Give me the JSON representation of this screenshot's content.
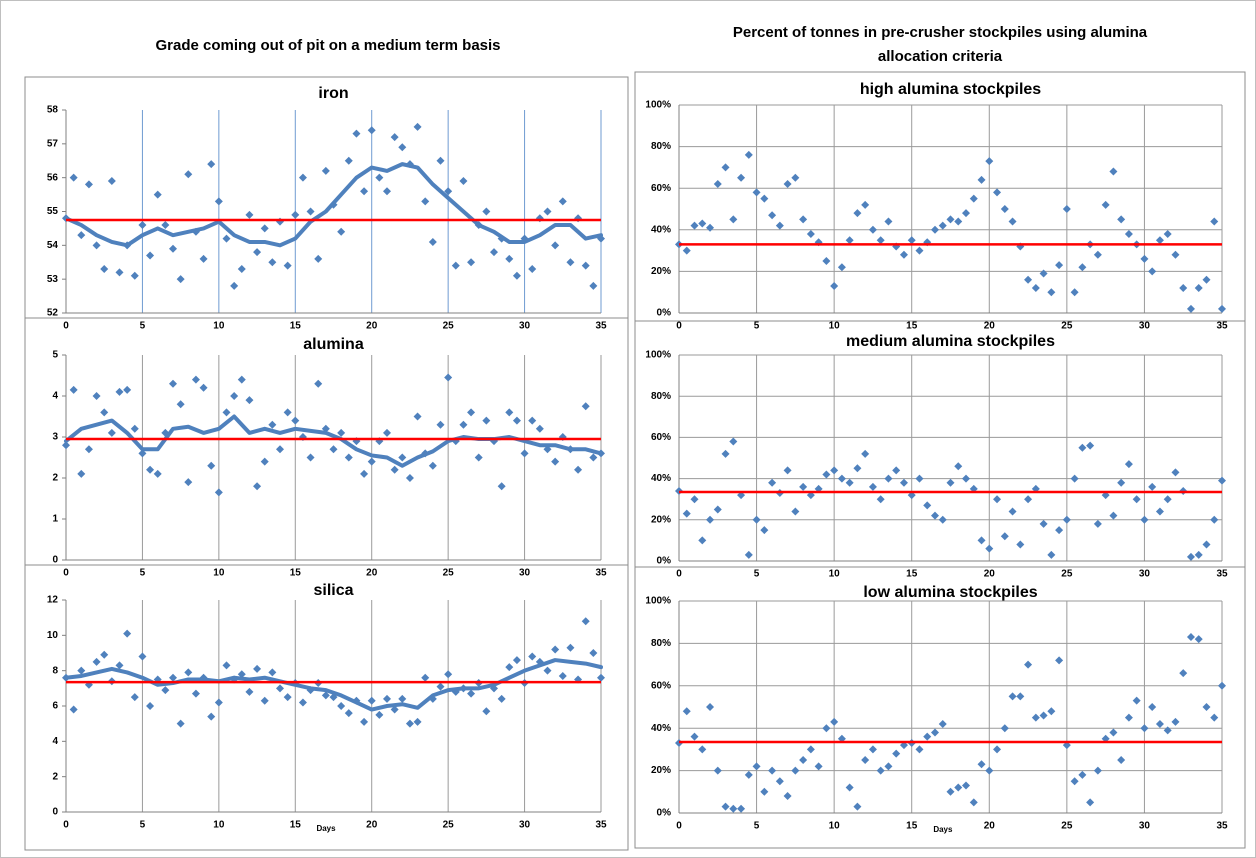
{
  "page": {
    "left_heading": "Grade coming out of pit on a medium term basis",
    "right_heading_line1": "Percent of tonnes in pre-crusher stockpiles using alumina",
    "right_heading_line2": "allocation criteria"
  },
  "chart_data": [
    {
      "type": "scatter",
      "title": "iron",
      "color": "#4f81bd",
      "grid_color": "#6f9bd1",
      "xgrid": true,
      "ygrid": false,
      "reference_line": 54.75,
      "reference_color": "#ff0000",
      "xlim": [
        0,
        35
      ],
      "xticks": [
        0,
        5,
        10,
        15,
        20,
        25,
        30,
        35
      ],
      "ylim": [
        52,
        58
      ],
      "yticks": [
        52,
        53,
        54,
        55,
        56,
        57,
        58
      ],
      "x": [
        0,
        0.5,
        1,
        1.5,
        2,
        2.5,
        3,
        3.5,
        4,
        4.5,
        5,
        5.5,
        6,
        6.5,
        7,
        7.5,
        8,
        8.5,
        9,
        9.5,
        10,
        10.5,
        11,
        11.5,
        12,
        12.5,
        13,
        13.5,
        14,
        14.5,
        15,
        15.5,
        16,
        16.5,
        17,
        17.5,
        18,
        18.5,
        19,
        19.5,
        20,
        20.5,
        21,
        21.5,
        22,
        22.5,
        23,
        23.5,
        24,
        24.5,
        25,
        25.5,
        26,
        26.5,
        27,
        27.5,
        28,
        28.5,
        29,
        29.5,
        30,
        30.5,
        31,
        31.5,
        32,
        32.5,
        33,
        33.5,
        34,
        34.5,
        35
      ],
      "values": [
        54.8,
        56.0,
        54.3,
        55.8,
        54.0,
        53.3,
        55.9,
        53.2,
        54.0,
        53.1,
        54.6,
        53.7,
        55.5,
        54.6,
        53.9,
        53.0,
        56.1,
        54.4,
        53.6,
        56.4,
        55.3,
        54.2,
        52.8,
        53.3,
        54.9,
        53.8,
        54.5,
        53.5,
        54.7,
        53.4,
        54.9,
        56.0,
        55.0,
        53.6,
        56.2,
        55.2,
        54.4,
        56.5,
        57.3,
        55.6,
        57.4,
        56.0,
        55.6,
        57.2,
        56.9,
        56.4,
        57.5,
        55.3,
        54.1,
        56.5,
        55.6,
        53.4,
        55.9,
        53.5,
        54.6,
        55.0,
        53.8,
        54.2,
        53.6,
        53.1,
        54.2,
        53.3,
        54.8,
        55.0,
        54.0,
        55.3,
        53.5,
        54.8,
        53.4,
        52.8,
        54.2
      ],
      "trend": {
        "x": [
          0,
          1,
          2,
          3,
          4,
          5,
          6,
          7,
          8,
          9,
          10,
          11,
          12,
          13,
          14,
          15,
          16,
          17,
          18,
          19,
          20,
          21,
          22,
          23,
          24,
          25,
          26,
          27,
          28,
          29,
          30,
          31,
          32,
          33,
          34,
          35
        ],
        "values": [
          54.8,
          54.6,
          54.3,
          54.1,
          54.0,
          54.3,
          54.5,
          54.3,
          54.4,
          54.5,
          54.7,
          54.3,
          54.1,
          54.1,
          54.0,
          54.2,
          54.7,
          55.0,
          55.5,
          56.0,
          56.3,
          56.2,
          56.4,
          56.3,
          55.8,
          55.4,
          55.0,
          54.6,
          54.4,
          54.1,
          54.1,
          54.3,
          54.6,
          54.6,
          54.2,
          54.3
        ]
      }
    },
    {
      "type": "scatter",
      "title": "alumina",
      "color": "#4f81bd",
      "grid_color": "#9a9a9a",
      "xgrid": true,
      "ygrid": false,
      "reference_line": 2.95,
      "reference_color": "#ff0000",
      "xlim": [
        0,
        35
      ],
      "xticks": [
        0,
        5,
        10,
        15,
        20,
        25,
        30,
        35
      ],
      "ylim": [
        0,
        5
      ],
      "yticks": [
        0,
        1,
        2,
        3,
        4,
        5
      ],
      "x": [
        0,
        0.5,
        1,
        1.5,
        2,
        2.5,
        3,
        3.5,
        4,
        4.5,
        5,
        5.5,
        6,
        6.5,
        7,
        7.5,
        8,
        8.5,
        9,
        9.5,
        10,
        10.5,
        11,
        11.5,
        12,
        12.5,
        13,
        13.5,
        14,
        14.5,
        15,
        15.5,
        16,
        16.5,
        17,
        17.5,
        18,
        18.5,
        19,
        19.5,
        20,
        20.5,
        21,
        21.5,
        22,
        22.5,
        23,
        23.5,
        24,
        24.5,
        25,
        25.5,
        26,
        26.5,
        27,
        27.5,
        28,
        28.5,
        29,
        29.5,
        30,
        30.5,
        31,
        31.5,
        32,
        32.5,
        33,
        33.5,
        34,
        34.5,
        35
      ],
      "values": [
        2.8,
        4.15,
        2.1,
        2.7,
        4.0,
        3.6,
        3.1,
        4.1,
        4.15,
        3.2,
        2.6,
        2.2,
        2.1,
        3.1,
        4.3,
        3.8,
        1.9,
        4.4,
        4.2,
        2.3,
        1.65,
        3.6,
        4.0,
        4.4,
        3.9,
        1.8,
        2.4,
        3.3,
        2.7,
        3.6,
        3.4,
        3.0,
        2.5,
        4.3,
        3.2,
        2.7,
        3.1,
        2.5,
        2.9,
        2.1,
        2.4,
        2.9,
        3.1,
        2.2,
        2.5,
        2.0,
        3.5,
        2.6,
        2.3,
        3.3,
        4.45,
        2.9,
        3.3,
        3.6,
        2.5,
        3.4,
        2.9,
        1.8,
        3.6,
        3.4,
        2.6,
        3.4,
        3.2,
        2.7,
        2.4,
        3.0,
        2.7,
        2.2,
        3.75,
        2.5,
        2.6
      ],
      "trend": {
        "x": [
          0,
          1,
          2,
          3,
          4,
          5,
          6,
          7,
          8,
          9,
          10,
          11,
          12,
          13,
          14,
          15,
          16,
          17,
          18,
          19,
          20,
          21,
          22,
          23,
          24,
          25,
          26,
          27,
          28,
          29,
          30,
          31,
          32,
          33,
          34,
          35
        ],
        "values": [
          2.9,
          3.2,
          3.3,
          3.4,
          3.1,
          2.7,
          2.7,
          3.2,
          3.25,
          3.1,
          3.2,
          3.5,
          3.1,
          3.2,
          3.1,
          3.2,
          3.15,
          3.1,
          2.95,
          2.7,
          2.55,
          2.5,
          2.3,
          2.5,
          2.65,
          2.9,
          3.0,
          2.95,
          2.95,
          3.0,
          2.9,
          2.8,
          2.8,
          2.7,
          2.7,
          2.6
        ]
      }
    },
    {
      "type": "scatter",
      "title": "silica",
      "color": "#4f81bd",
      "grid_color": "#9a9a9a",
      "xgrid": true,
      "ygrid": false,
      "xlabel": "Days",
      "reference_line": 7.35,
      "reference_color": "#ff0000",
      "xlim": [
        0,
        35
      ],
      "xticks": [
        0,
        5,
        10,
        15,
        20,
        25,
        30,
        35
      ],
      "ylim": [
        0,
        12
      ],
      "yticks": [
        0,
        2,
        4,
        6,
        8,
        10,
        12
      ],
      "x": [
        0,
        0.5,
        1,
        1.5,
        2,
        2.5,
        3,
        3.5,
        4,
        4.5,
        5,
        5.5,
        6,
        6.5,
        7,
        7.5,
        8,
        8.5,
        9,
        9.5,
        10,
        10.5,
        11,
        11.5,
        12,
        12.5,
        13,
        13.5,
        14,
        14.5,
        15,
        15.5,
        16,
        16.5,
        17,
        17.5,
        18,
        18.5,
        19,
        19.5,
        20,
        20.5,
        21,
        21.5,
        22,
        22.5,
        23,
        23.5,
        24,
        24.5,
        25,
        25.5,
        26,
        26.5,
        27,
        27.5,
        28,
        28.5,
        29,
        29.5,
        30,
        30.5,
        31,
        31.5,
        32,
        32.5,
        33,
        33.5,
        34,
        34.5,
        35
      ],
      "values": [
        7.6,
        5.8,
        8.0,
        7.2,
        8.5,
        8.9,
        7.4,
        8.3,
        10.1,
        6.5,
        8.8,
        6.0,
        7.5,
        6.9,
        7.6,
        5.0,
        7.9,
        6.7,
        7.6,
        5.4,
        6.2,
        8.3,
        7.5,
        7.8,
        6.8,
        8.1,
        6.3,
        7.9,
        7.0,
        6.5,
        7.3,
        6.2,
        6.9,
        7.3,
        6.6,
        6.5,
        6.0,
        5.6,
        6.3,
        5.1,
        6.3,
        5.5,
        6.4,
        5.8,
        6.4,
        5.0,
        5.1,
        7.6,
        6.4,
        7.1,
        7.8,
        6.8,
        7.0,
        6.7,
        7.3,
        5.7,
        7.0,
        6.4,
        8.2,
        8.6,
        7.3,
        8.8,
        8.5,
        8.0,
        9.2,
        7.7,
        9.3,
        7.5,
        10.8,
        9.0,
        7.6
      ],
      "trend": {
        "x": [
          0,
          1,
          2,
          3,
          4,
          5,
          6,
          7,
          8,
          9,
          10,
          11,
          12,
          13,
          14,
          15,
          16,
          17,
          18,
          19,
          20,
          21,
          22,
          23,
          24,
          25,
          26,
          27,
          28,
          29,
          30,
          31,
          32,
          33,
          34,
          35
        ],
        "values": [
          7.6,
          7.7,
          7.9,
          8.1,
          7.9,
          7.6,
          7.2,
          7.3,
          7.5,
          7.5,
          7.4,
          7.6,
          7.5,
          7.6,
          7.4,
          7.2,
          7.0,
          6.9,
          6.6,
          6.2,
          5.8,
          6.0,
          6.1,
          5.9,
          6.6,
          6.9,
          7.0,
          7.0,
          7.2,
          7.6,
          8.0,
          8.3,
          8.6,
          8.5,
          8.4,
          8.2
        ]
      }
    },
    {
      "type": "scatter",
      "title": "high alumina stockpiles",
      "color": "#4f81bd",
      "grid_color": "#9a9a9a",
      "xgrid": true,
      "ygrid": true,
      "reference_line": 33,
      "reference_color": "#ff0000",
      "xlim": [
        0,
        35
      ],
      "xticks": [
        0,
        5,
        10,
        15,
        20,
        25,
        30,
        35
      ],
      "ylim": [
        0,
        100
      ],
      "yticks": [
        {
          "value": 0,
          "label": "0%"
        },
        {
          "value": 20,
          "label": "20%"
        },
        {
          "value": 40,
          "label": "40%"
        },
        {
          "value": 60,
          "label": "60%"
        },
        {
          "value": 80,
          "label": "80%"
        },
        {
          "value": 100,
          "label": "100%"
        }
      ],
      "x": [
        0,
        0.5,
        1,
        1.5,
        2,
        2.5,
        3,
        3.5,
        4,
        4.5,
        5,
        5.5,
        6,
        6.5,
        7,
        7.5,
        8,
        8.5,
        9,
        9.5,
        10,
        10.5,
        11,
        11.5,
        12,
        12.5,
        13,
        13.5,
        14,
        14.5,
        15,
        15.5,
        16,
        16.5,
        17,
        17.5,
        18,
        18.5,
        19,
        19.5,
        20,
        20.5,
        21,
        21.5,
        22,
        22.5,
        23,
        23.5,
        24,
        24.5,
        25,
        25.5,
        26,
        26.5,
        27,
        27.5,
        28,
        28.5,
        29,
        29.5,
        30,
        30.5,
        31,
        31.5,
        32,
        32.5,
        33,
        33.5,
        34,
        34.5,
        35
      ],
      "values": [
        33,
        30,
        42,
        43,
        41,
        62,
        70,
        45,
        65,
        76,
        58,
        55,
        47,
        42,
        62,
        65,
        45,
        38,
        34,
        25,
        13,
        22,
        35,
        48,
        52,
        40,
        35,
        44,
        32,
        28,
        35,
        30,
        34,
        40,
        42,
        45,
        44,
        48,
        55,
        64,
        73,
        58,
        50,
        44,
        32,
        16,
        12,
        19,
        10,
        23,
        50,
        10,
        22,
        33,
        28,
        52,
        68,
        45,
        38,
        33,
        26,
        20,
        35,
        38,
        28,
        12,
        2,
        12,
        16,
        44,
        2
      ]
    },
    {
      "type": "scatter",
      "title": "medium alumina stockpiles",
      "color": "#4f81bd",
      "grid_color": "#9a9a9a",
      "xgrid": true,
      "ygrid": true,
      "reference_line": 33.5,
      "reference_color": "#ff0000",
      "xlim": [
        0,
        35
      ],
      "xticks": [
        0,
        5,
        10,
        15,
        20,
        25,
        30,
        35
      ],
      "ylim": [
        0,
        100
      ],
      "yticks": [
        {
          "value": 0,
          "label": "0%"
        },
        {
          "value": 20,
          "label": "20%"
        },
        {
          "value": 40,
          "label": "40%"
        },
        {
          "value": 60,
          "label": "60%"
        },
        {
          "value": 80,
          "label": "80%"
        },
        {
          "value": 100,
          "label": "100%"
        }
      ],
      "x": [
        0,
        0.5,
        1,
        1.5,
        2,
        2.5,
        3,
        3.5,
        4,
        4.5,
        5,
        5.5,
        6,
        6.5,
        7,
        7.5,
        8,
        8.5,
        9,
        9.5,
        10,
        10.5,
        11,
        11.5,
        12,
        12.5,
        13,
        13.5,
        14,
        14.5,
        15,
        15.5,
        16,
        16.5,
        17,
        17.5,
        18,
        18.5,
        19,
        19.5,
        20,
        20.5,
        21,
        21.5,
        22,
        22.5,
        23,
        23.5,
        24,
        24.5,
        25,
        25.5,
        26,
        26.5,
        27,
        27.5,
        28,
        28.5,
        29,
        29.5,
        30,
        30.5,
        31,
        31.5,
        32,
        32.5,
        33,
        33.5,
        34,
        34.5,
        35
      ],
      "values": [
        34,
        23,
        30,
        10,
        20,
        25,
        52,
        58,
        32,
        3,
        20,
        15,
        38,
        33,
        44,
        24,
        36,
        32,
        35,
        42,
        44,
        40,
        38,
        45,
        52,
        36,
        30,
        40,
        44,
        38,
        32,
        40,
        27,
        22,
        20,
        38,
        46,
        40,
        35,
        10,
        6,
        30,
        12,
        24,
        8,
        30,
        35,
        18,
        3,
        15,
        20,
        40,
        55,
        56,
        18,
        32,
        22,
        38,
        47,
        30,
        20,
        36,
        24,
        30,
        43,
        34,
        2,
        3,
        8,
        20,
        39
      ]
    },
    {
      "type": "scatter",
      "title": "low alumina stockpiles",
      "color": "#4f81bd",
      "grid_color": "#9a9a9a",
      "xgrid": true,
      "ygrid": true,
      "xlabel": "Days",
      "reference_line": 33.5,
      "reference_color": "#ff0000",
      "xlim": [
        0,
        35
      ],
      "xticks": [
        0,
        5,
        10,
        15,
        20,
        25,
        30,
        35
      ],
      "ylim": [
        0,
        100
      ],
      "yticks": [
        {
          "value": 0,
          "label": "0%"
        },
        {
          "value": 20,
          "label": "20%"
        },
        {
          "value": 40,
          "label": "40%"
        },
        {
          "value": 60,
          "label": "60%"
        },
        {
          "value": 80,
          "label": "80%"
        },
        {
          "value": 100,
          "label": "100%"
        }
      ],
      "x": [
        0,
        0.5,
        1,
        1.5,
        2,
        2.5,
        3,
        3.5,
        4,
        4.5,
        5,
        5.5,
        6,
        6.5,
        7,
        7.5,
        8,
        8.5,
        9,
        9.5,
        10,
        10.5,
        11,
        11.5,
        12,
        12.5,
        13,
        13.5,
        14,
        14.5,
        15,
        15.5,
        16,
        16.5,
        17,
        17.5,
        18,
        18.5,
        19,
        19.5,
        20,
        20.5,
        21,
        21.5,
        22,
        22.5,
        23,
        23.5,
        24,
        24.5,
        25,
        25.5,
        26,
        26.5,
        27,
        27.5,
        28,
        28.5,
        29,
        29.5,
        30,
        30.5,
        31,
        31.5,
        32,
        32.5,
        33,
        33.5,
        34,
        34.5,
        35
      ],
      "values": [
        33,
        48,
        36,
        30,
        50,
        20,
        3,
        2,
        2,
        18,
        22,
        10,
        20,
        15,
        8,
        20,
        25,
        30,
        22,
        40,
        43,
        35,
        12,
        3,
        25,
        30,
        20,
        22,
        28,
        32,
        33,
        30,
        36,
        38,
        42,
        10,
        12,
        13,
        5,
        23,
        20,
        30,
        40,
        55,
        55,
        70,
        45,
        46,
        48,
        72,
        32,
        15,
        18,
        5,
        20,
        35,
        38,
        25,
        45,
        53,
        40,
        50,
        42,
        39,
        43,
        66,
        83,
        82,
        50,
        45,
        60
      ]
    }
  ]
}
